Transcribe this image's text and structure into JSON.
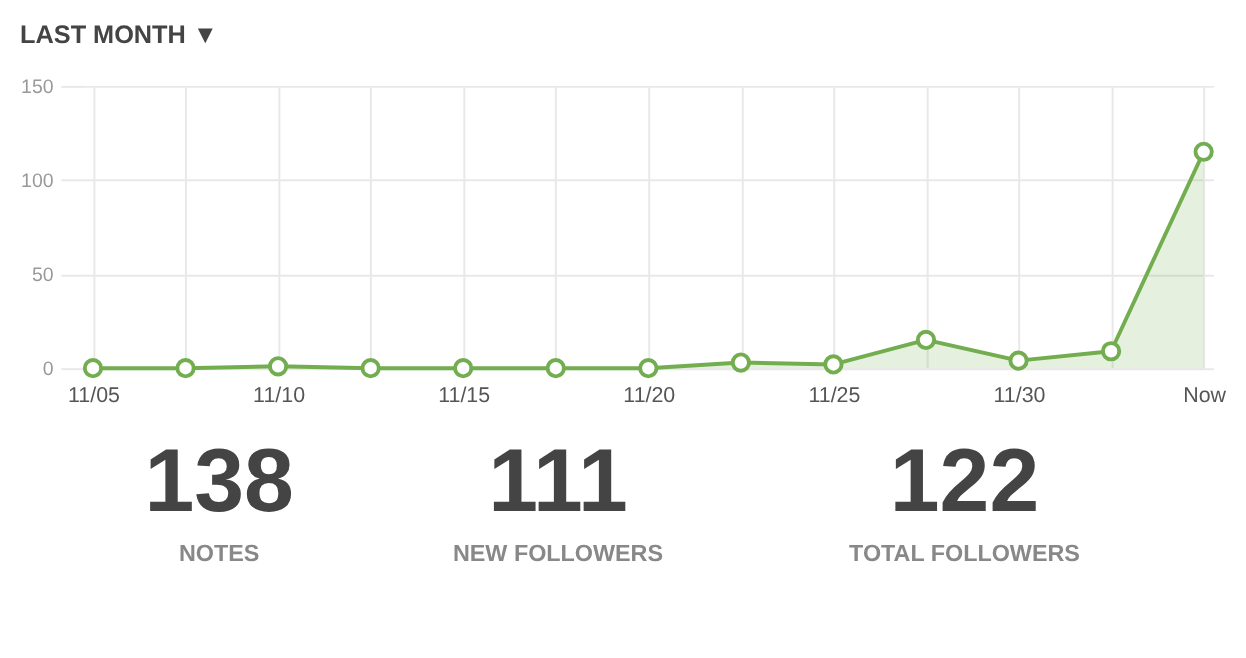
{
  "chart_data": [
    {
      "type": "area",
      "title": "LAST MONTH ▼",
      "categories": [
        "11/05",
        null,
        "11/10",
        null,
        "11/15",
        null,
        "11/20",
        null,
        "11/25",
        null,
        "11/30",
        null,
        "Now"
      ],
      "series": [
        {
          "color": "#72ad4f",
          "values": [
            0,
            0,
            1,
            0,
            0,
            0,
            0,
            3,
            2,
            15,
            4,
            9,
            115
          ]
        }
      ],
      "ylim": [
        0,
        150
      ],
      "yticks": [
        0,
        50,
        100,
        150
      ],
      "grid": true,
      "marker": "circle"
    },
    {
      "type": "other",
      "annotations": [
        "138",
        "NOTES",
        "111",
        "NEW FOLLOWERS",
        "122",
        "TOTAL FOLLOWERS"
      ]
    }
  ]
}
